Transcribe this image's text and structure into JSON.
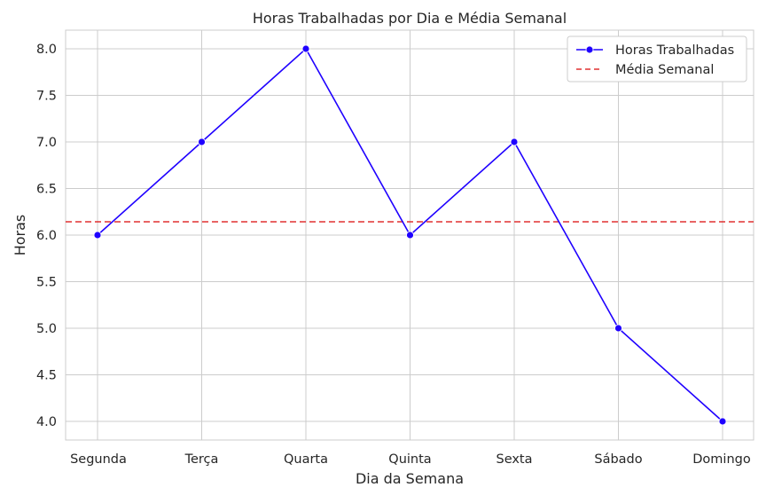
{
  "chart_data": {
    "type": "line",
    "title": "Horas Trabalhadas por Dia e Média Semanal",
    "xlabel": "Dia da Semana",
    "ylabel": "Horas",
    "categories": [
      "Segunda",
      "Terça",
      "Quarta",
      "Quinta",
      "Sexta",
      "Sábado",
      "Domingo"
    ],
    "ylim": [
      3.8,
      8.2
    ],
    "yticks": [
      "4.0",
      "4.5",
      "5.0",
      "5.5",
      "6.0",
      "6.5",
      "7.0",
      "7.5",
      "8.0"
    ],
    "grid": true,
    "legend_position": "top-right",
    "series": [
      {
        "name": "Horas Trabalhadas",
        "values": [
          6,
          7,
          8,
          6,
          7,
          5,
          4
        ],
        "color": "#1f00ff",
        "style": "solid",
        "marker": "circle"
      }
    ],
    "reference_lines": [
      {
        "name": "Média Semanal",
        "value": 6.142857,
        "color": "#e03030",
        "style": "dashed"
      }
    ]
  }
}
